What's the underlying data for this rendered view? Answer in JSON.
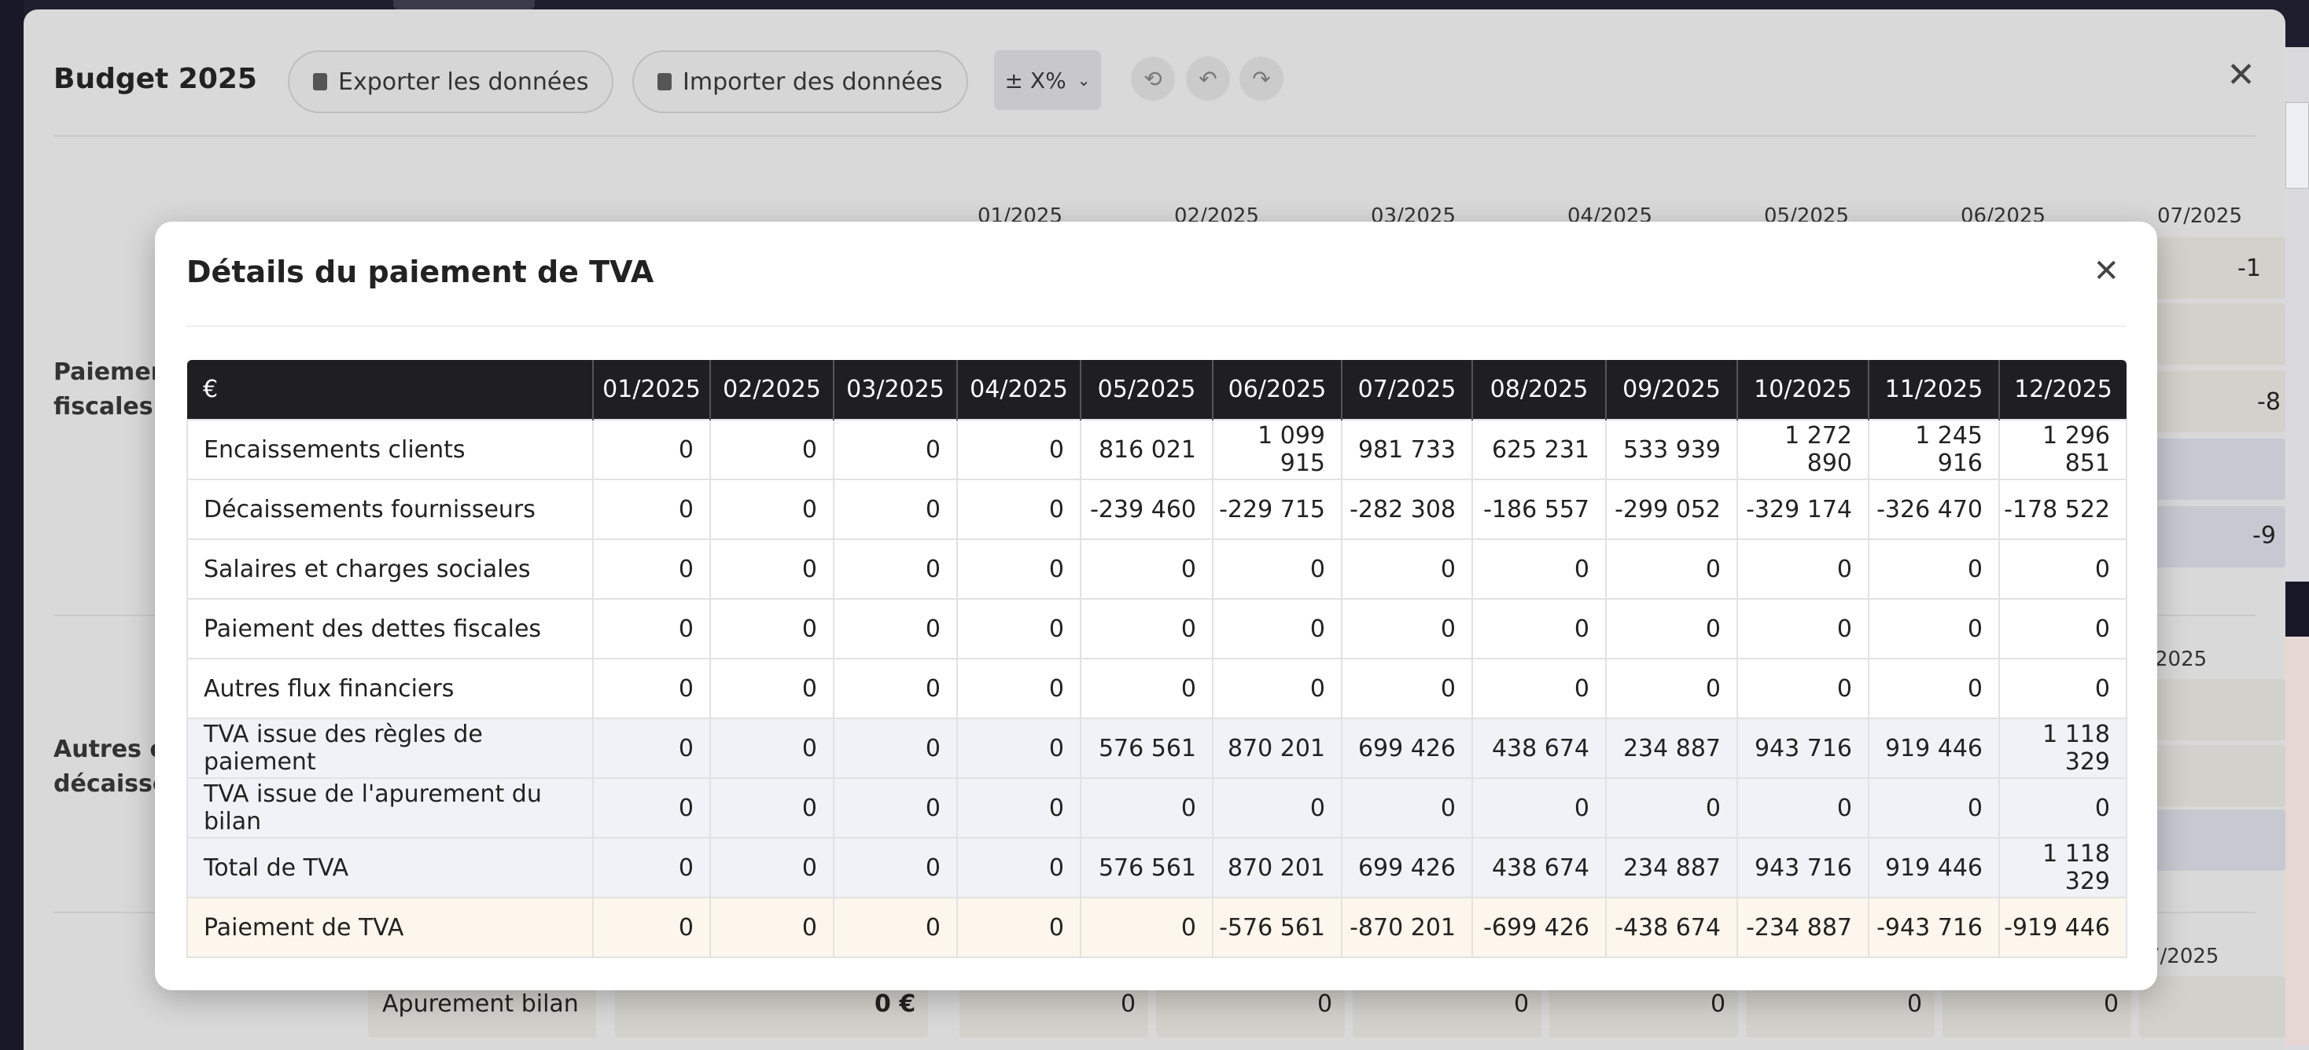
{
  "background_window": {
    "title": "Budget 2025",
    "export_label": "Exporter les données",
    "import_label": "Importer des données",
    "percent_label": "± X%",
    "months_top": [
      "01/2025",
      "02/2025",
      "03/2025",
      "04/2025",
      "05/2025",
      "06/2025",
      "07/2025"
    ],
    "section_labels": [
      "Paiemen\nfiscales",
      "Autres en\ndécaisse"
    ],
    "partial_values": [
      "-1",
      "-8",
      "-9"
    ],
    "mid_month": "2025",
    "bottom_month": "7/2025",
    "bottom_row": {
      "label": "Apurement bilan",
      "total": "0 €",
      "values": [
        "0",
        "0",
        "0",
        "0",
        "0",
        "0"
      ]
    }
  },
  "modal": {
    "title": "Détails du paiement de TVA",
    "table": {
      "currency_header": "€",
      "months": [
        "01/2025",
        "02/2025",
        "03/2025",
        "04/2025",
        "05/2025",
        "06/2025",
        "07/2025",
        "08/2025",
        "09/2025",
        "10/2025",
        "11/2025",
        "12/2025"
      ],
      "rows": [
        {
          "label": "Encaissements clients",
          "style": "white",
          "values": [
            "0",
            "0",
            "0",
            "0",
            "816 021",
            "1 099 915",
            "981 733",
            "625 231",
            "533 939",
            "1 272 890",
            "1 245 916",
            "1 296 851"
          ]
        },
        {
          "label": "Décaissements fournisseurs",
          "style": "white",
          "values": [
            "0",
            "0",
            "0",
            "0",
            "-239 460",
            "-229 715",
            "-282 308",
            "-186 557",
            "-299 052",
            "-329 174",
            "-326 470",
            "-178 522"
          ]
        },
        {
          "label": "Salaires et charges sociales",
          "style": "white",
          "values": [
            "0",
            "0",
            "0",
            "0",
            "0",
            "0",
            "0",
            "0",
            "0",
            "0",
            "0",
            "0"
          ]
        },
        {
          "label": "Paiement des dettes fiscales",
          "style": "white",
          "values": [
            "0",
            "0",
            "0",
            "0",
            "0",
            "0",
            "0",
            "0",
            "0",
            "0",
            "0",
            "0"
          ]
        },
        {
          "label": "Autres flux financiers",
          "style": "white",
          "values": [
            "0",
            "0",
            "0",
            "0",
            "0",
            "0",
            "0",
            "0",
            "0",
            "0",
            "0",
            "0"
          ]
        },
        {
          "label": "TVA issue des règles de paiement",
          "style": "blue",
          "values": [
            "0",
            "0",
            "0",
            "0",
            "576 561",
            "870 201",
            "699 426",
            "438 674",
            "234 887",
            "943 716",
            "919 446",
            "1 118 329"
          ]
        },
        {
          "label": "TVA issue de l'apurement du bilan",
          "style": "blue",
          "values": [
            "0",
            "0",
            "0",
            "0",
            "0",
            "0",
            "0",
            "0",
            "0",
            "0",
            "0",
            "0"
          ]
        },
        {
          "label": "Total de TVA",
          "style": "blue",
          "values": [
            "0",
            "0",
            "0",
            "0",
            "576 561",
            "870 201",
            "699 426",
            "438 674",
            "234 887",
            "943 716",
            "919 446",
            "1 118 329"
          ]
        },
        {
          "label": "Paiement de TVA",
          "style": "cream",
          "values": [
            "0",
            "0",
            "0",
            "0",
            "0",
            "-576 561",
            "-870 201",
            "-699 426",
            "-438 674",
            "-234 887",
            "-943 716",
            "-919 446"
          ]
        }
      ]
    }
  }
}
